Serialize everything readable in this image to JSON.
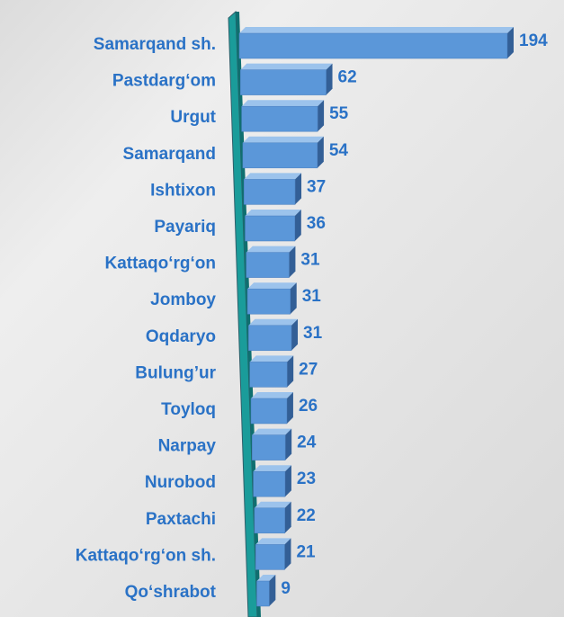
{
  "chart_data": {
    "type": "bar",
    "orientation": "horizontal",
    "categories": [
      "Samarqand sh.",
      "Pastdarg‘om",
      "Urgut",
      "Samarqand",
      "Ishtixon",
      "Payariq",
      "Kattaqo‘rg‘on",
      "Jomboy",
      "Oqdaryo",
      "Bulung’ur",
      "Toyloq",
      "Narpay",
      "Nurobod",
      "Paxtachi",
      "Kattaqo‘rg‘on sh.",
      "Qo‘shrabot"
    ],
    "values": [
      194,
      62,
      55,
      54,
      37,
      36,
      31,
      31,
      31,
      27,
      26,
      24,
      23,
      22,
      21,
      9
    ],
    "color": "#5b97d9"
  }
}
